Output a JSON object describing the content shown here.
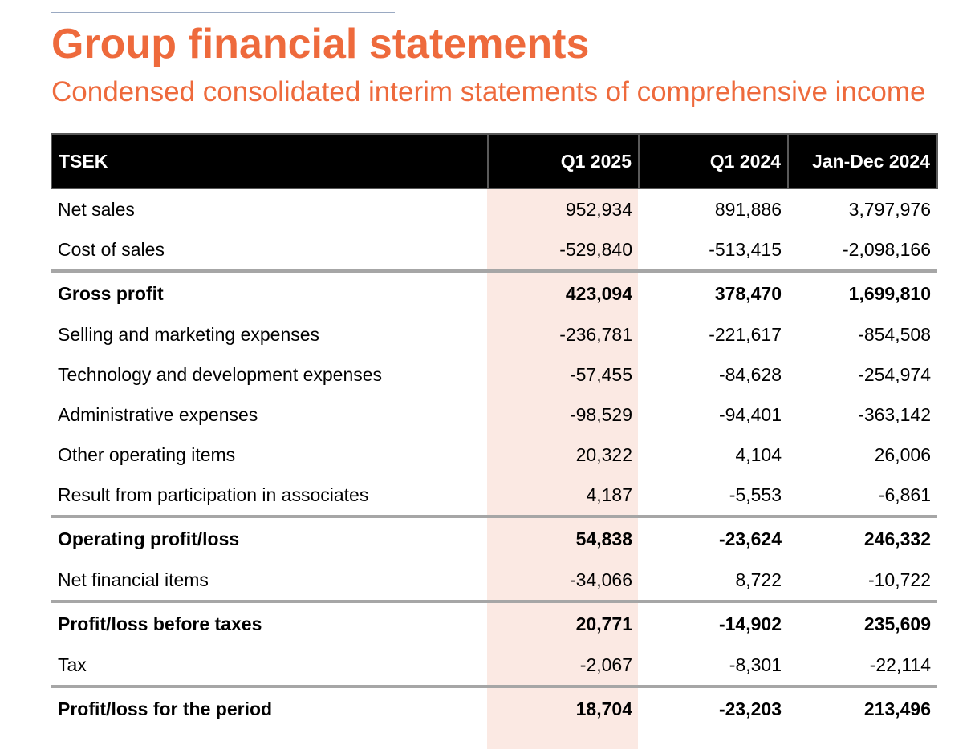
{
  "header": {
    "title": "Group financial statements",
    "subtitle": "Condensed consolidated interim statements of comprehensive income"
  },
  "colors": {
    "accent": "#ee6a3c",
    "highlight_column": "#fbe9e3",
    "header_background": "#000000",
    "total_rule": "#a6a6a6"
  },
  "table": {
    "columns": [
      "TSEK",
      "Q1 2025",
      "Q1 2024",
      "Jan-Dec 2024"
    ],
    "rows": [
      {
        "label": "Net sales",
        "q1_2025": "952,934",
        "q1_2024": "891,886",
        "jan_dec_2024": "3,797,976",
        "bold": false
      },
      {
        "label": "Cost of sales",
        "q1_2025": "-529,840",
        "q1_2024": "-513,415",
        "jan_dec_2024": "-2,098,166",
        "bold": false
      },
      {
        "label": "Gross profit",
        "q1_2025": "423,094",
        "q1_2024": "378,470",
        "jan_dec_2024": "1,699,810",
        "bold": true
      },
      {
        "label": "Selling and marketing expenses",
        "q1_2025": "-236,781",
        "q1_2024": "-221,617",
        "jan_dec_2024": "-854,508",
        "bold": false
      },
      {
        "label": "Technology and development expenses",
        "q1_2025": "-57,455",
        "q1_2024": "-84,628",
        "jan_dec_2024": "-254,974",
        "bold": false
      },
      {
        "label": "Administrative expenses",
        "q1_2025": "-98,529",
        "q1_2024": "-94,401",
        "jan_dec_2024": "-363,142",
        "bold": false
      },
      {
        "label": "Other operating items",
        "q1_2025": "20,322",
        "q1_2024": "4,104",
        "jan_dec_2024": "26,006",
        "bold": false
      },
      {
        "label": "Result from participation in associates",
        "q1_2025": "4,187",
        "q1_2024": "-5,553",
        "jan_dec_2024": "-6,861",
        "bold": false
      },
      {
        "label": "Operating profit/loss",
        "q1_2025": "54,838",
        "q1_2024": "-23,624",
        "jan_dec_2024": "246,332",
        "bold": true
      },
      {
        "label": "Net financial items",
        "q1_2025": "-34,066",
        "q1_2024": "8,722",
        "jan_dec_2024": "-10,722",
        "bold": false
      },
      {
        "label": "Profit/loss before taxes",
        "q1_2025": "20,771",
        "q1_2024": "-14,902",
        "jan_dec_2024": "235,609",
        "bold": true
      },
      {
        "label": "Tax",
        "q1_2025": "-2,067",
        "q1_2024": "-8,301",
        "jan_dec_2024": "-22,114",
        "bold": false
      },
      {
        "label": "Profit/loss for the period",
        "q1_2025": "18,704",
        "q1_2024": "-23,203",
        "jan_dec_2024": "213,496",
        "bold": true
      }
    ]
  }
}
